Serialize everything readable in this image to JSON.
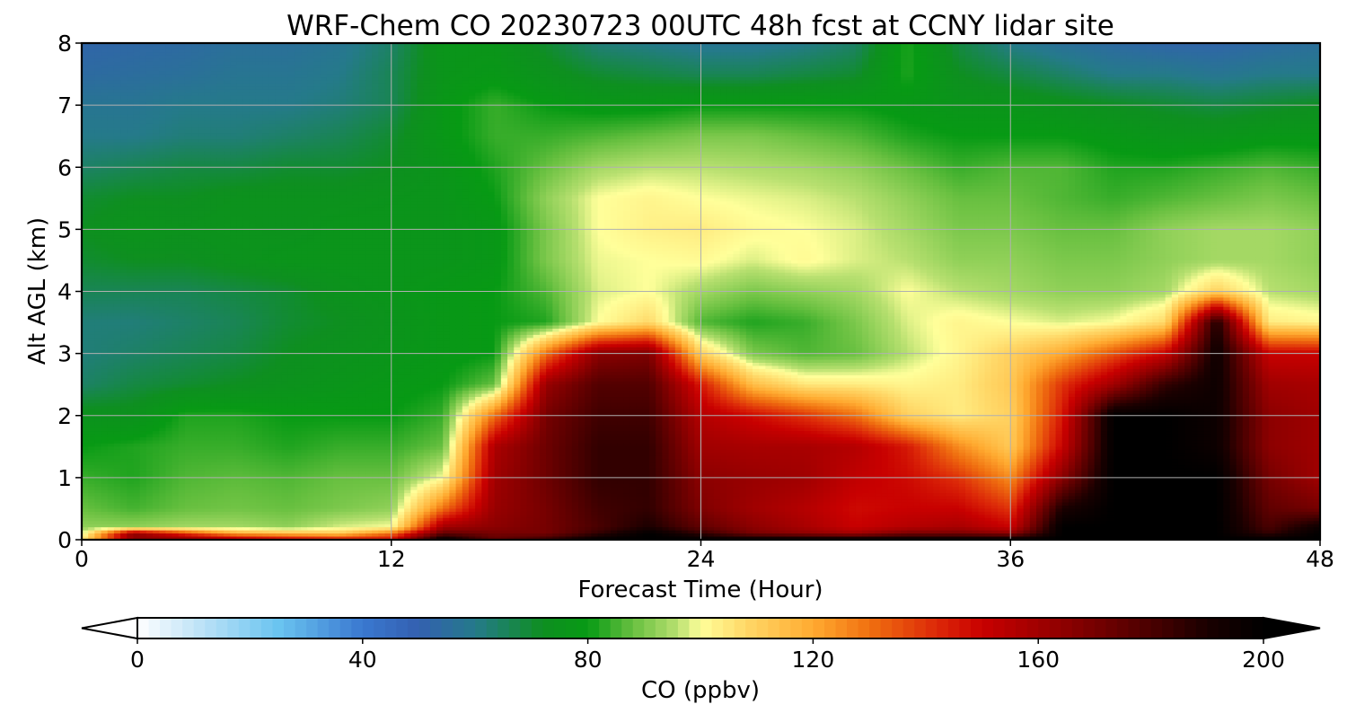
{
  "chart_data": {
    "type": "heatmap",
    "title": "WRF-Chem CO  20230723 00UTC 48h fcst at CCNY lidar site",
    "xlabel": "Forecast Time (Hour)",
    "ylabel": "Alt AGL (km)",
    "xlim": [
      0,
      48
    ],
    "ylim": [
      0,
      8
    ],
    "xticks": [
      0,
      12,
      24,
      36,
      48
    ],
    "yticks": [
      0,
      1,
      2,
      3,
      4,
      5,
      6,
      7,
      8
    ],
    "grid": true,
    "colorbar": {
      "label": "CO  (ppbv)",
      "range": [
        0,
        200
      ],
      "ticks": [
        0,
        40,
        80,
        120,
        160,
        200
      ],
      "extend": "both",
      "stops": [
        [
          0,
          "#ffffff"
        ],
        [
          12,
          "#b8e0f6"
        ],
        [
          25,
          "#6ac4f0"
        ],
        [
          40,
          "#3a78d0"
        ],
        [
          50,
          "#3360b0"
        ],
        [
          60,
          "#257a8a"
        ],
        [
          72,
          "#0e8f20"
        ],
        [
          80,
          "#079a14"
        ],
        [
          88,
          "#68c040"
        ],
        [
          96,
          "#b8e070"
        ],
        [
          100,
          "#ffff9a"
        ],
        [
          108,
          "#ffd868"
        ],
        [
          120,
          "#ffaa30"
        ],
        [
          130,
          "#f07010"
        ],
        [
          142,
          "#dc2808"
        ],
        [
          150,
          "#c80000"
        ],
        [
          165,
          "#8c0000"
        ],
        [
          180,
          "#4a0000"
        ],
        [
          190,
          "#1a0000"
        ],
        [
          200,
          "#000000"
        ]
      ]
    },
    "hours": [
      0,
      2,
      4,
      6,
      8,
      10,
      12,
      14,
      16,
      18,
      20,
      22,
      24,
      26,
      28,
      30,
      32,
      34,
      36,
      38,
      40,
      42,
      44,
      46,
      48
    ],
    "altitudes_km": [
      0,
      0.1,
      0.2,
      0.5,
      1,
      1.5,
      2,
      2.5,
      3,
      3.5,
      4,
      4.5,
      5,
      5.5,
      6,
      6.5,
      7,
      7.5,
      8
    ],
    "values_ppbv": [
      [
        104,
        165,
        165,
        158,
        152,
        148,
        148,
        200,
        175,
        185,
        200,
        200,
        200,
        200,
        200,
        200,
        200,
        200,
        200,
        200,
        200,
        200,
        200,
        200,
        200
      ],
      [
        97,
        165,
        140,
        120,
        115,
        112,
        130,
        175,
        170,
        170,
        185,
        200,
        185,
        170,
        165,
        160,
        170,
        170,
        165,
        200,
        200,
        200,
        200,
        185,
        200
      ],
      [
        92,
        92,
        94,
        94,
        92,
        98,
        100,
        160,
        165,
        170,
        180,
        190,
        175,
        165,
        158,
        150,
        155,
        158,
        150,
        200,
        200,
        200,
        200,
        180,
        195
      ],
      [
        88,
        85,
        88,
        89,
        88,
        90,
        92,
        130,
        162,
        170,
        182,
        185,
        168,
        160,
        155,
        148,
        150,
        150,
        140,
        190,
        200,
        200,
        200,
        175,
        170
      ],
      [
        84,
        82,
        86,
        87,
        86,
        88,
        88,
        100,
        160,
        172,
        185,
        185,
        165,
        162,
        160,
        152,
        148,
        140,
        125,
        165,
        200,
        200,
        200,
        170,
        160
      ],
      [
        80,
        82,
        84,
        84,
        82,
        84,
        84,
        88,
        157,
        172,
        185,
        185,
        160,
        158,
        158,
        155,
        145,
        125,
        112,
        150,
        200,
        200,
        195,
        165,
        160
      ],
      [
        74,
        74,
        82,
        82,
        80,
        80,
        80,
        84,
        130,
        170,
        182,
        182,
        155,
        148,
        140,
        130,
        110,
        104,
        110,
        145,
        200,
        200,
        195,
        165,
        160
      ],
      [
        64,
        68,
        70,
        72,
        74,
        76,
        78,
        80,
        88,
        162,
        178,
        178,
        145,
        115,
        105,
        104,
        102,
        104,
        112,
        140,
        160,
        185,
        195,
        160,
        158
      ],
      [
        62,
        64,
        66,
        68,
        72,
        74,
        76,
        78,
        80,
        130,
        165,
        168,
        110,
        90,
        86,
        88,
        96,
        102,
        110,
        120,
        135,
        150,
        195,
        150,
        150
      ],
      [
        62,
        62,
        64,
        66,
        70,
        72,
        75,
        78,
        80,
        82,
        100,
        108,
        86,
        82,
        84,
        90,
        98,
        102,
        100,
        98,
        100,
        108,
        190,
        104,
        102
      ],
      [
        66,
        66,
        66,
        68,
        70,
        74,
        76,
        78,
        80,
        86,
        98,
        100,
        94,
        90,
        92,
        94,
        100,
        96,
        94,
        92,
        92,
        94,
        110,
        96,
        94
      ],
      [
        70,
        72,
        72,
        74,
        76,
        76,
        76,
        76,
        78,
        90,
        99,
        100,
        101,
        98,
        101,
        98,
        96,
        92,
        92,
        90,
        90,
        92,
        94,
        94,
        92
      ],
      [
        72,
        75,
        74,
        75,
        74,
        76,
        76,
        76,
        78,
        90,
        100,
        103,
        104,
        101,
        100,
        98,
        94,
        90,
        90,
        88,
        88,
        92,
        94,
        94,
        92
      ],
      [
        70,
        72,
        72,
        74,
        74,
        74,
        75,
        76,
        80,
        92,
        100,
        102,
        100,
        99,
        98,
        96,
        92,
        88,
        88,
        86,
        84,
        86,
        88,
        90,
        88
      ],
      [
        64,
        66,
        68,
        68,
        70,
        70,
        72,
        76,
        82,
        88,
        94,
        96,
        96,
        95,
        94,
        92,
        88,
        84,
        86,
        86,
        82,
        82,
        84,
        86,
        84
      ],
      [
        60,
        60,
        62,
        62,
        64,
        66,
        70,
        78,
        84,
        84,
        86,
        88,
        90,
        90,
        88,
        86,
        82,
        80,
        80,
        80,
        78,
        76,
        76,
        78,
        78
      ],
      [
        58,
        58,
        60,
        60,
        60,
        62,
        66,
        78,
        84,
        80,
        78,
        78,
        80,
        80,
        80,
        80,
        78,
        76,
        76,
        74,
        72,
        70,
        68,
        70,
        72
      ],
      [
        54,
        55,
        56,
        58,
        58,
        60,
        66,
        76,
        78,
        74,
        70,
        68,
        66,
        66,
        68,
        70,
        82,
        72,
        68,
        64,
        60,
        60,
        58,
        60,
        60
      ],
      [
        52,
        53,
        54,
        56,
        56,
        58,
        64,
        76,
        76,
        70,
        62,
        60,
        58,
        58,
        60,
        64,
        82,
        68,
        60,
        56,
        54,
        52,
        52,
        54,
        56
      ]
    ]
  }
}
